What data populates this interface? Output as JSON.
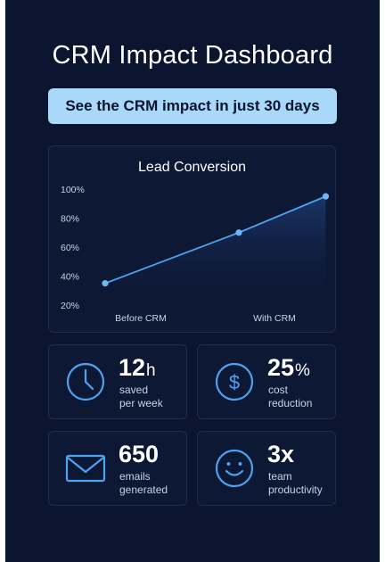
{
  "page": {
    "title": "CRM Impact Dashboard",
    "banner": "See the CRM impact in just 30 days"
  },
  "colors": {
    "background": "#0b1530",
    "card": "#0d1835",
    "card_border": "#1e2c4e",
    "banner": "#a9d8f8",
    "accent": "#4da3f0",
    "text": "#ffffff",
    "muted_text": "#c9d2e3"
  },
  "chart_data": {
    "type": "line",
    "title": "Lead Conversion",
    "xlabel": "",
    "ylabel": "",
    "categories": [
      "Before CRM",
      "With CRM"
    ],
    "y_ticks": [
      "100%",
      "80%",
      "60%",
      "40%",
      "20%"
    ],
    "ylim": [
      20,
      100
    ],
    "grid": false,
    "series": [
      {
        "points": [
          {
            "x": 0,
            "y": 35
          },
          {
            "x": 1,
            "y": 70
          },
          {
            "x": 1.65,
            "y": 95
          }
        ]
      }
    ]
  },
  "stats": [
    {
      "icon": "clock-icon",
      "value": "12",
      "unit": "h",
      "label_line1": "saved",
      "label_line2": "per week"
    },
    {
      "icon": "dollar-icon",
      "value": "25",
      "unit": "%",
      "label_line1": "cost",
      "label_line2": "reduction"
    },
    {
      "icon": "envelope-icon",
      "value": "650",
      "unit": "",
      "label_line1": "emails",
      "label_line2": "generated"
    },
    {
      "icon": "smiley-icon",
      "value": "3x",
      "unit": "",
      "label_line1": "team",
      "label_line2": "productivity"
    }
  ]
}
